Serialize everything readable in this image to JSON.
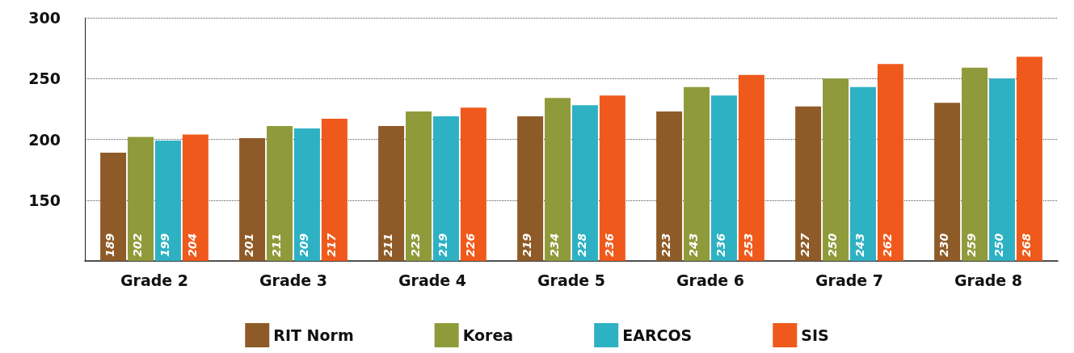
{
  "chart_data": {
    "type": "bar",
    "categories": [
      "Grade 2",
      "Grade 3",
      "Grade 4",
      "Grade 5",
      "Grade 6",
      "Grade 7",
      "Grade 8"
    ],
    "series": [
      {
        "name": "RIT Norm",
        "color": "#8e5b28",
        "values": [
          189,
          201,
          211,
          219,
          223,
          227,
          230
        ]
      },
      {
        "name": "Korea",
        "color": "#8f9b3b",
        "values": [
          202,
          211,
          223,
          234,
          243,
          250,
          259
        ]
      },
      {
        "name": "EARCOS",
        "color": "#2eb1c3",
        "values": [
          199,
          209,
          219,
          228,
          236,
          243,
          250
        ]
      },
      {
        "name": "SIS",
        "color": "#ef5a1c",
        "values": [
          204,
          217,
          226,
          236,
          253,
          262,
          268
        ]
      }
    ],
    "ylim": [
      100,
      300
    ],
    "yticks": [
      {
        "value": 100,
        "label": null
      },
      150,
      200,
      250,
      300
    ],
    "grid": "y",
    "legend": "bottom",
    "data_labels": true
  }
}
